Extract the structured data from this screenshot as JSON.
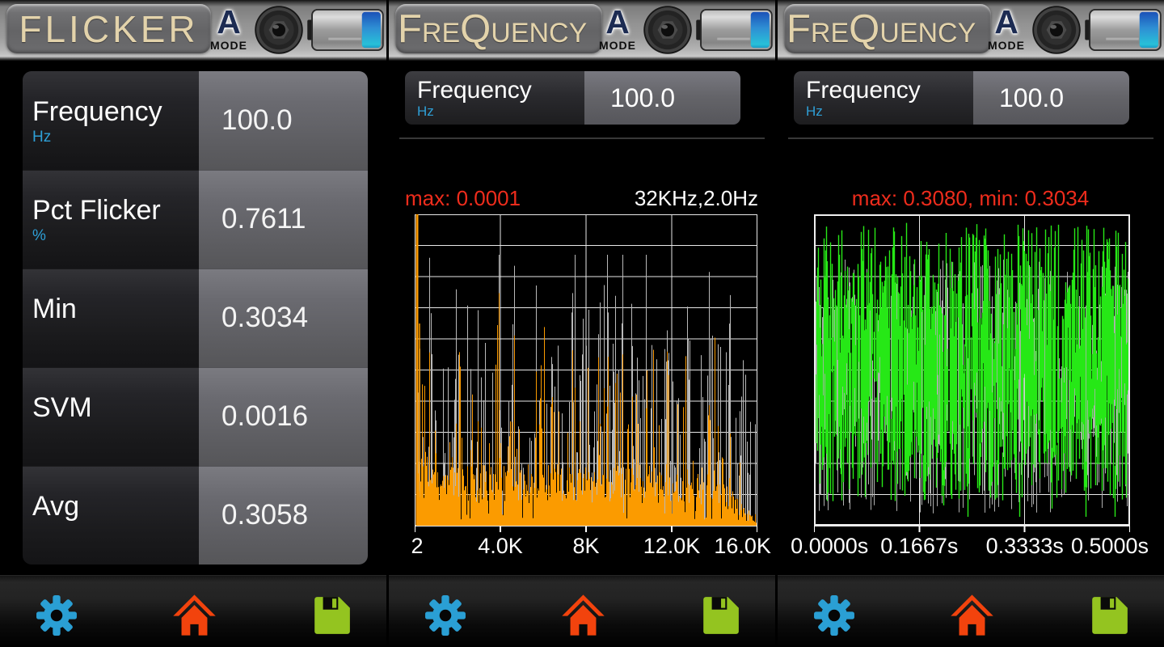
{
  "panels": [
    {
      "title": "FLICKER",
      "mode_label": "A",
      "mode_sub": "MODE",
      "table": {
        "rows": [
          {
            "label": "Frequency",
            "unit": "Hz",
            "value": "100.0"
          },
          {
            "label": "Pct Flicker",
            "unit": "%",
            "value": "0.7611"
          },
          {
            "label": "Min",
            "unit": "",
            "value": "0.3034"
          },
          {
            "label": "SVM",
            "unit": "",
            "value": "0.0016"
          },
          {
            "label": "Avg",
            "unit": "",
            "value": "0.3058"
          }
        ]
      }
    },
    {
      "title": "FreQuency",
      "mode_label": "A",
      "mode_sub": "MODE",
      "field": {
        "label": "Frequency",
        "unit": "Hz",
        "value": "100.0"
      },
      "chart": {
        "max_label": "max: 0.0001",
        "info_label": "32KHz,2.0Hz",
        "x_ticks": [
          "2",
          "4.0K",
          "8K",
          "12.0K",
          "16.0K"
        ]
      }
    },
    {
      "title": "FreQuency",
      "mode_label": "A",
      "mode_sub": "MODE",
      "field": {
        "label": "Frequency",
        "unit": "Hz",
        "value": "100.0"
      },
      "chart": {
        "stats_label": "max: 0.3080,  min: 0.3034",
        "x_ticks": [
          "0.0000s",
          "0.1667s",
          "0.3333s",
          "0.5000s"
        ]
      }
    }
  ],
  "toolbar": {
    "icons": [
      {
        "name": "settings",
        "color": "#2a9fd4"
      },
      {
        "name": "home",
        "color": "#f2430d"
      },
      {
        "name": "save",
        "color": "#94c420"
      }
    ]
  },
  "colors": {
    "accent_red": "#ee2c1c",
    "accent_blue_unit": "#2e9fd6",
    "spectrum_orange": "#fb9b00",
    "waveform_green": "#27e817",
    "peak_gray": "#b9b9b9",
    "title_cream": "#e3d3ab"
  },
  "chart_data": [
    {
      "type": "bar",
      "subtype": "fft-spectrum",
      "title": "FFT of light signal",
      "max": 0.0001,
      "sample_info": "32KHz,2.0Hz",
      "x_ticks": [
        "2",
        "4.0K",
        "8K",
        "12.0K",
        "16.0K"
      ],
      "x_range_hz": [
        2,
        16000
      ],
      "ylim": [
        0,
        0.0001
      ],
      "grid": {
        "cols": 4,
        "rows": 10
      },
      "legend": "none",
      "color": "#fb9b00",
      "peak_color": "#b9b9b9",
      "seed": 7,
      "points": 424,
      "description": "Noisy broadband spectrum: full-height fundamental spike at far-left (2 Hz bin), dense orange noise floor ~10-40% with random spikes and gray peak-hold lines above, amplitude tapering to near zero approaching 16 kHz."
    },
    {
      "type": "line",
      "subtype": "waveform",
      "title": "Light level vs time",
      "max": 0.308,
      "min": 0.3034,
      "x_ticks": [
        "0.0000s",
        "0.1667s",
        "0.3333s",
        "0.5000s"
      ],
      "x_range_s": [
        0,
        0.5
      ],
      "ylim": [
        0.3034,
        0.308
      ],
      "grid": {
        "cols": 3,
        "rows": 10
      },
      "legend": "none",
      "color": "#27e817",
      "alt_color": "#b0b0b0",
      "seed": 11,
      "points": 390,
      "description": "Dense noisy waveform of vertical green strokes spanning most of the plot height with sparser gray strokes behind, on black background with white grid."
    }
  ]
}
